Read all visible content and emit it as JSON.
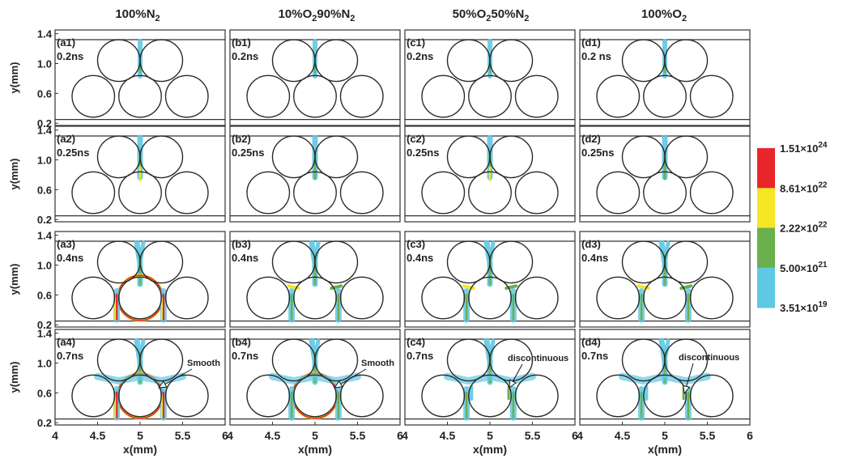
{
  "chart_data": {
    "type": "heatmap",
    "columns": [
      {
        "name": "100%N₂",
        "main": "100%N",
        "sub": "2",
        "tail": ""
      },
      {
        "name": "10%O₂90%N₂",
        "p1": "10%O",
        "s1": "2",
        "p2": "90%N",
        "s2": "2"
      },
      {
        "name": "50%O₂50%N₂",
        "p1": "50%O",
        "s1": "2",
        "p2": "50%N",
        "s2": "2"
      },
      {
        "name": "100%O₂",
        "main": "100%O",
        "sub": "2",
        "tail": ""
      }
    ],
    "rows": [
      {
        "time": "0.2ns",
        "labels": [
          "(a1)",
          "(b1)",
          "(c1)",
          "(d1)"
        ],
        "times": [
          "0.2ns",
          "0.2ns",
          "0.2ns",
          "0.2 ns"
        ]
      },
      {
        "time": "0.25ns",
        "labels": [
          "(a2)",
          "(b2)",
          "(c2)",
          "(d2)"
        ],
        "times": [
          "0.25ns",
          "0.25ns",
          "0.25ns",
          "0.25ns"
        ]
      },
      {
        "time": "0.4ns",
        "labels": [
          "(a3)",
          "(b3)",
          "(c3)",
          "(d3)"
        ],
        "times": [
          "0.4ns",
          "0.4ns",
          "0.4ns",
          "0.4ns"
        ]
      },
      {
        "time": "0.7ns",
        "labels": [
          "(a4)",
          "(b4)",
          "(c4)",
          "(d4)"
        ],
        "times": [
          "0.7ns",
          "0.7ns",
          "0.7ns",
          "0.7ns"
        ]
      }
    ],
    "xlabel": "x(mm)",
    "ylabel": "y(mm)",
    "xlim": [
      4,
      6
    ],
    "ylim": [
      0.2,
      1.4
    ],
    "xticks": [
      "4",
      "4.5",
      "5",
      "5.5",
      "6"
    ],
    "yticks": [
      "1.4",
      "1.0",
      "0.6",
      "0.2"
    ],
    "ytick_values": [
      1.4,
      1.0,
      0.6,
      0.2
    ],
    "xtick_values": [
      4,
      4.5,
      5,
      5.5,
      6
    ],
    "electrodes": {
      "radius_mm": 0.25,
      "upper": [
        [
          4.75,
          1.04
        ],
        [
          5.25,
          1.04
        ]
      ],
      "lower": [
        [
          4.45,
          0.56
        ],
        [
          5.0,
          0.56
        ],
        [
          5.55,
          0.56
        ]
      ],
      "plates_y": [
        1.32,
        0.25
      ]
    },
    "colorbar": {
      "colors": [
        "#e8262a",
        "#f5e626",
        "#6ab04c",
        "#5fc8e4"
      ],
      "labels": [
        {
          "base": "1.51×10",
          "exp": "24"
        },
        {
          "base": "8.61×10",
          "exp": "22"
        },
        {
          "base": "2.22×10",
          "exp": "22"
        },
        {
          "base": "5.00×10",
          "exp": "21"
        },
        {
          "base": "3.51×10",
          "exp": "19"
        }
      ]
    },
    "annotations": [
      {
        "panel": "a4",
        "text": "Smooth"
      },
      {
        "panel": "b4",
        "text": "Smooth"
      },
      {
        "panel": "c4",
        "text": "discontinuous"
      },
      {
        "panel": "d4",
        "text": "discontinuous"
      }
    ]
  }
}
